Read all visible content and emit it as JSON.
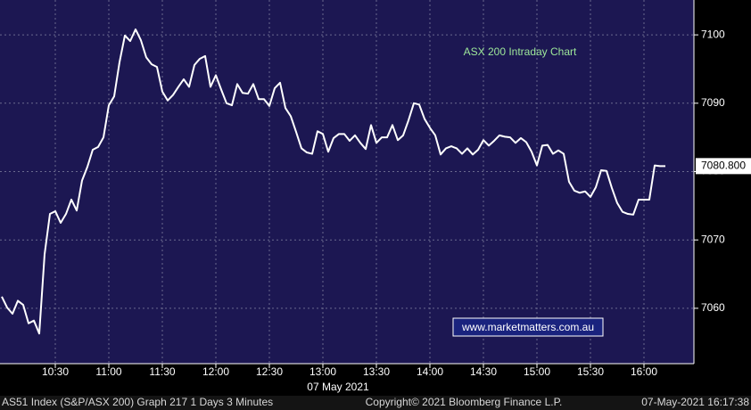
{
  "chart_data": {
    "type": "line",
    "title": "ASX 200 Intraday Chart",
    "watermark": "www.marketmatters.com.au",
    "x_label": "07 May 2021",
    "footer": {
      "left": "AS51 Index (S&P/ASX 200) Graph 217 1 Days 3 Minutes",
      "center": "Copyright© 2021 Bloomberg Finance L.P.",
      "right": "07-May-2021 16:17:38"
    },
    "x": [
      "10:00",
      "10:03",
      "10:06",
      "10:09",
      "10:12",
      "10:15",
      "10:18",
      "10:21",
      "10:24",
      "10:27",
      "10:30",
      "10:33",
      "10:36",
      "10:39",
      "10:42",
      "10:45",
      "10:48",
      "10:51",
      "10:54",
      "10:57",
      "11:00",
      "11:03",
      "11:06",
      "11:09",
      "11:12",
      "11:15",
      "11:18",
      "11:21",
      "11:24",
      "11:27",
      "11:30",
      "11:33",
      "11:36",
      "11:39",
      "11:42",
      "11:45",
      "11:48",
      "11:51",
      "11:54",
      "11:57",
      "12:00",
      "12:03",
      "12:06",
      "12:09",
      "12:12",
      "12:15",
      "12:18",
      "12:21",
      "12:24",
      "12:27",
      "12:30",
      "12:33",
      "12:36",
      "12:39",
      "12:42",
      "12:45",
      "12:48",
      "12:51",
      "12:54",
      "12:57",
      "13:00",
      "13:03",
      "13:06",
      "13:09",
      "13:12",
      "13:15",
      "13:18",
      "13:21",
      "13:24",
      "13:27",
      "13:30",
      "13:33",
      "13:36",
      "13:39",
      "13:42",
      "13:45",
      "13:48",
      "13:51",
      "13:54",
      "13:57",
      "14:00",
      "14:03",
      "14:06",
      "14:09",
      "14:12",
      "14:15",
      "14:18",
      "14:21",
      "14:24",
      "14:27",
      "14:30",
      "14:33",
      "14:36",
      "14:39",
      "14:42",
      "14:45",
      "14:48",
      "14:51",
      "14:54",
      "14:57",
      "15:00",
      "15:03",
      "15:06",
      "15:09",
      "15:12",
      "15:15",
      "15:18",
      "15:21",
      "15:24",
      "15:27",
      "15:30",
      "15:33",
      "15:36",
      "15:39",
      "15:42",
      "15:45",
      "15:48",
      "15:51",
      "15:54",
      "15:57",
      "16:00",
      "16:03",
      "16:06",
      "16:09",
      "16:12"
    ],
    "series": [
      {
        "name": "AS51 Index",
        "color": "#ffffff",
        "values": [
          7061.7,
          7060.1,
          7059.2,
          7061.1,
          7060.5,
          7057.8,
          7058.2,
          7056.3,
          7067.9,
          7073.8,
          7074.2,
          7072.5,
          7073.8,
          7075.9,
          7074.3,
          7078.7,
          7080.7,
          7083.2,
          7083.6,
          7085.0,
          7089.7,
          7091.0,
          7096.0,
          7099.9,
          7099.1,
          7100.8,
          7099.2,
          7096.7,
          7095.7,
          7095.3,
          7091.7,
          7090.4,
          7091.2,
          7092.4,
          7093.5,
          7092.4,
          7095.6,
          7096.5,
          7096.9,
          7092.4,
          7094.1,
          7092.0,
          7090.0,
          7089.7,
          7092.8,
          7091.5,
          7091.4,
          7092.8,
          7090.6,
          7090.6,
          7089.6,
          7092.2,
          7093.0,
          7089.3,
          7088.1,
          7085.8,
          7083.4,
          7082.8,
          7082.6,
          7085.9,
          7085.5,
          7082.9,
          7084.9,
          7085.5,
          7085.5,
          7084.5,
          7085.3,
          7084.2,
          7083.3,
          7086.8,
          7084.2,
          7085.0,
          7085.0,
          7086.8,
          7084.6,
          7085.3,
          7087.5,
          7090.0,
          7089.8,
          7087.7,
          7086.4,
          7085.3,
          7082.5,
          7083.4,
          7083.7,
          7083.4,
          7082.6,
          7083.4,
          7082.5,
          7083.2,
          7084.6,
          7083.8,
          7084.5,
          7085.3,
          7085.1,
          7085.0,
          7084.2,
          7084.9,
          7084.3,
          7082.9,
          7080.9,
          7083.8,
          7083.9,
          7082.6,
          7083.1,
          7082.6,
          7078.5,
          7077.2,
          7076.9,
          7077.1,
          7076.3,
          7077.7,
          7080.2,
          7080.1,
          7077.6,
          7075.4,
          7074.1,
          7073.8,
          7073.7,
          7075.9,
          7075.9,
          7075.9,
          7080.9,
          7080.8,
          7080.8
        ]
      }
    ],
    "last_label": "7080.800",
    "xlim": [
      "09:59",
      "16:28"
    ],
    "xticks": [
      "10:30",
      "11:00",
      "11:30",
      "12:00",
      "12:30",
      "13:00",
      "13:30",
      "14:00",
      "14:30",
      "15:00",
      "15:30",
      "16:00"
    ],
    "ylim": [
      7051.9,
      7105.1
    ],
    "yticks": [
      7060,
      7070,
      7080,
      7090,
      7100
    ],
    "grid": true,
    "background": "#1c1752"
  }
}
